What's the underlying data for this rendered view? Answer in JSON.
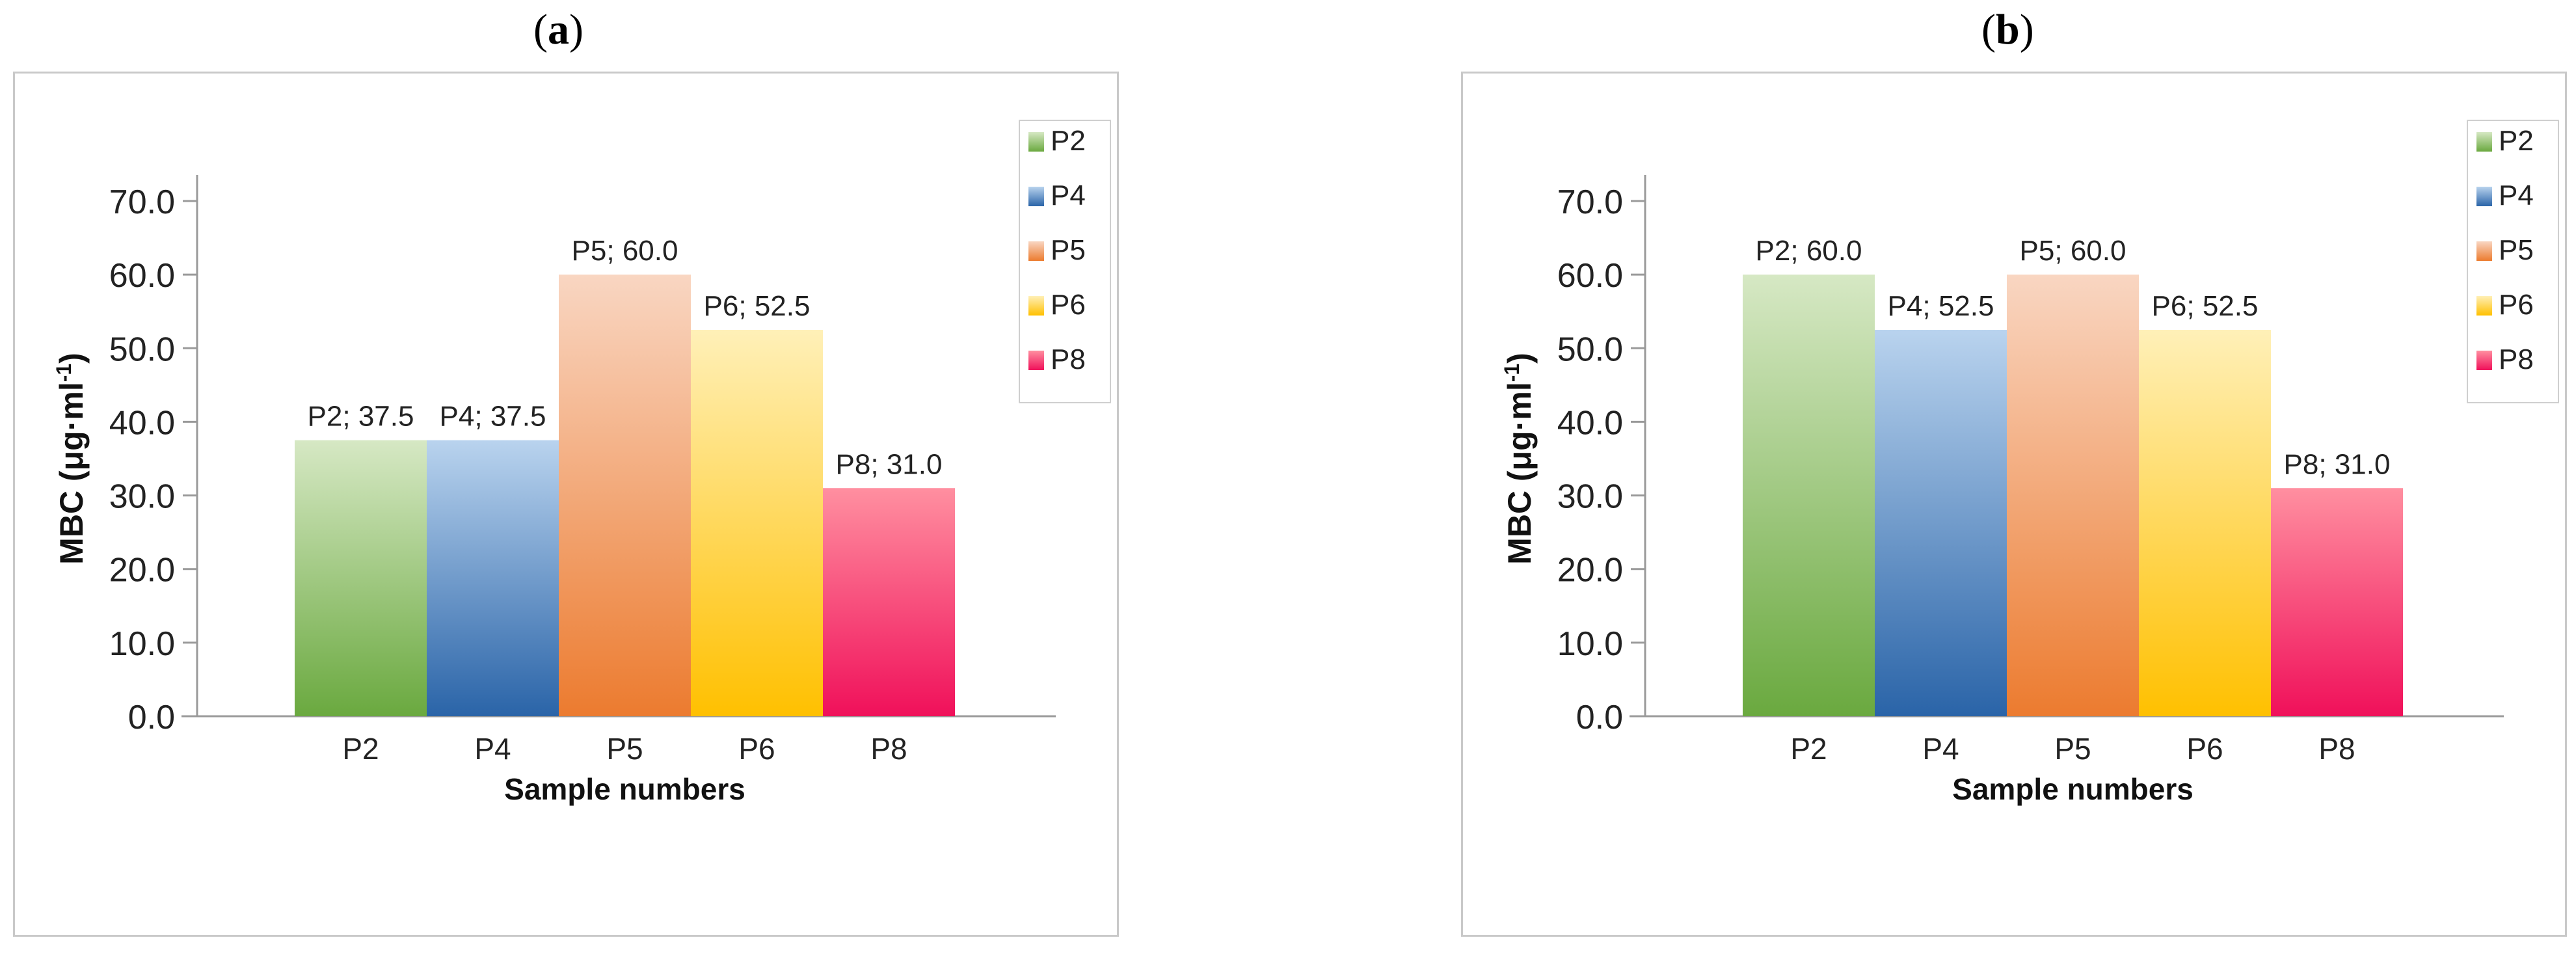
{
  "panels": [
    {
      "label_open": "(",
      "label_letter": "a",
      "label_close": ")"
    },
    {
      "label_open": "(",
      "label_letter": "b",
      "label_close": ")"
    }
  ],
  "colors": {
    "P2": [
      "#d6e8c4",
      "#6aa93f"
    ],
    "P4": [
      "#b9d3ee",
      "#2a64a8"
    ],
    "P5": [
      "#f9d6c2",
      "#ec7b2f"
    ],
    "P6": [
      "#fff0b8",
      "#ffc000"
    ],
    "P8": [
      "#ff8fa0",
      "#f0105a"
    ]
  },
  "chart_data": [
    {
      "type": "bar",
      "categories": [
        "P2",
        "P4",
        "P5",
        "P6",
        "P8"
      ],
      "values": [
        37.5,
        37.5,
        60.0,
        52.5,
        31.0
      ],
      "data_labels": [
        "P2; 37.5",
        "P4; 37.5",
        "P5; 60.0",
        "P6; 52.5",
        "P8; 31.0"
      ],
      "xlabel": "Sample numbers",
      "ylabel": "MBC (μg·ml",
      "ylabel_sup": "-1",
      "ylabel_close": ")",
      "ylim": [
        0,
        70
      ],
      "yticks": [
        "0.0",
        "10.0",
        "20.0",
        "30.0",
        "40.0",
        "50.0",
        "60.0",
        "70.0"
      ],
      "legend": [
        "P2",
        "P4",
        "P5",
        "P6",
        "P8"
      ],
      "legend_position": "top-right",
      "grid": false
    },
    {
      "type": "bar",
      "categories": [
        "P2",
        "P4",
        "P5",
        "P6",
        "P8"
      ],
      "values": [
        60.0,
        52.5,
        60.0,
        52.5,
        31.0
      ],
      "data_labels": [
        "P2; 60.0",
        "P4; 52.5",
        "P5; 60.0",
        "P6; 52.5",
        "P8; 31.0"
      ],
      "xlabel": "Sample numbers",
      "ylabel": "MBC (μg·ml",
      "ylabel_sup": "-1",
      "ylabel_close": ")",
      "ylim": [
        0,
        70
      ],
      "yticks": [
        "0.0",
        "10.0",
        "20.0",
        "30.0",
        "40.0",
        "50.0",
        "60.0",
        "70.0"
      ],
      "legend": [
        "P2",
        "P4",
        "P5",
        "P6",
        "P8"
      ],
      "legend_position": "top-right",
      "grid": false
    }
  ]
}
